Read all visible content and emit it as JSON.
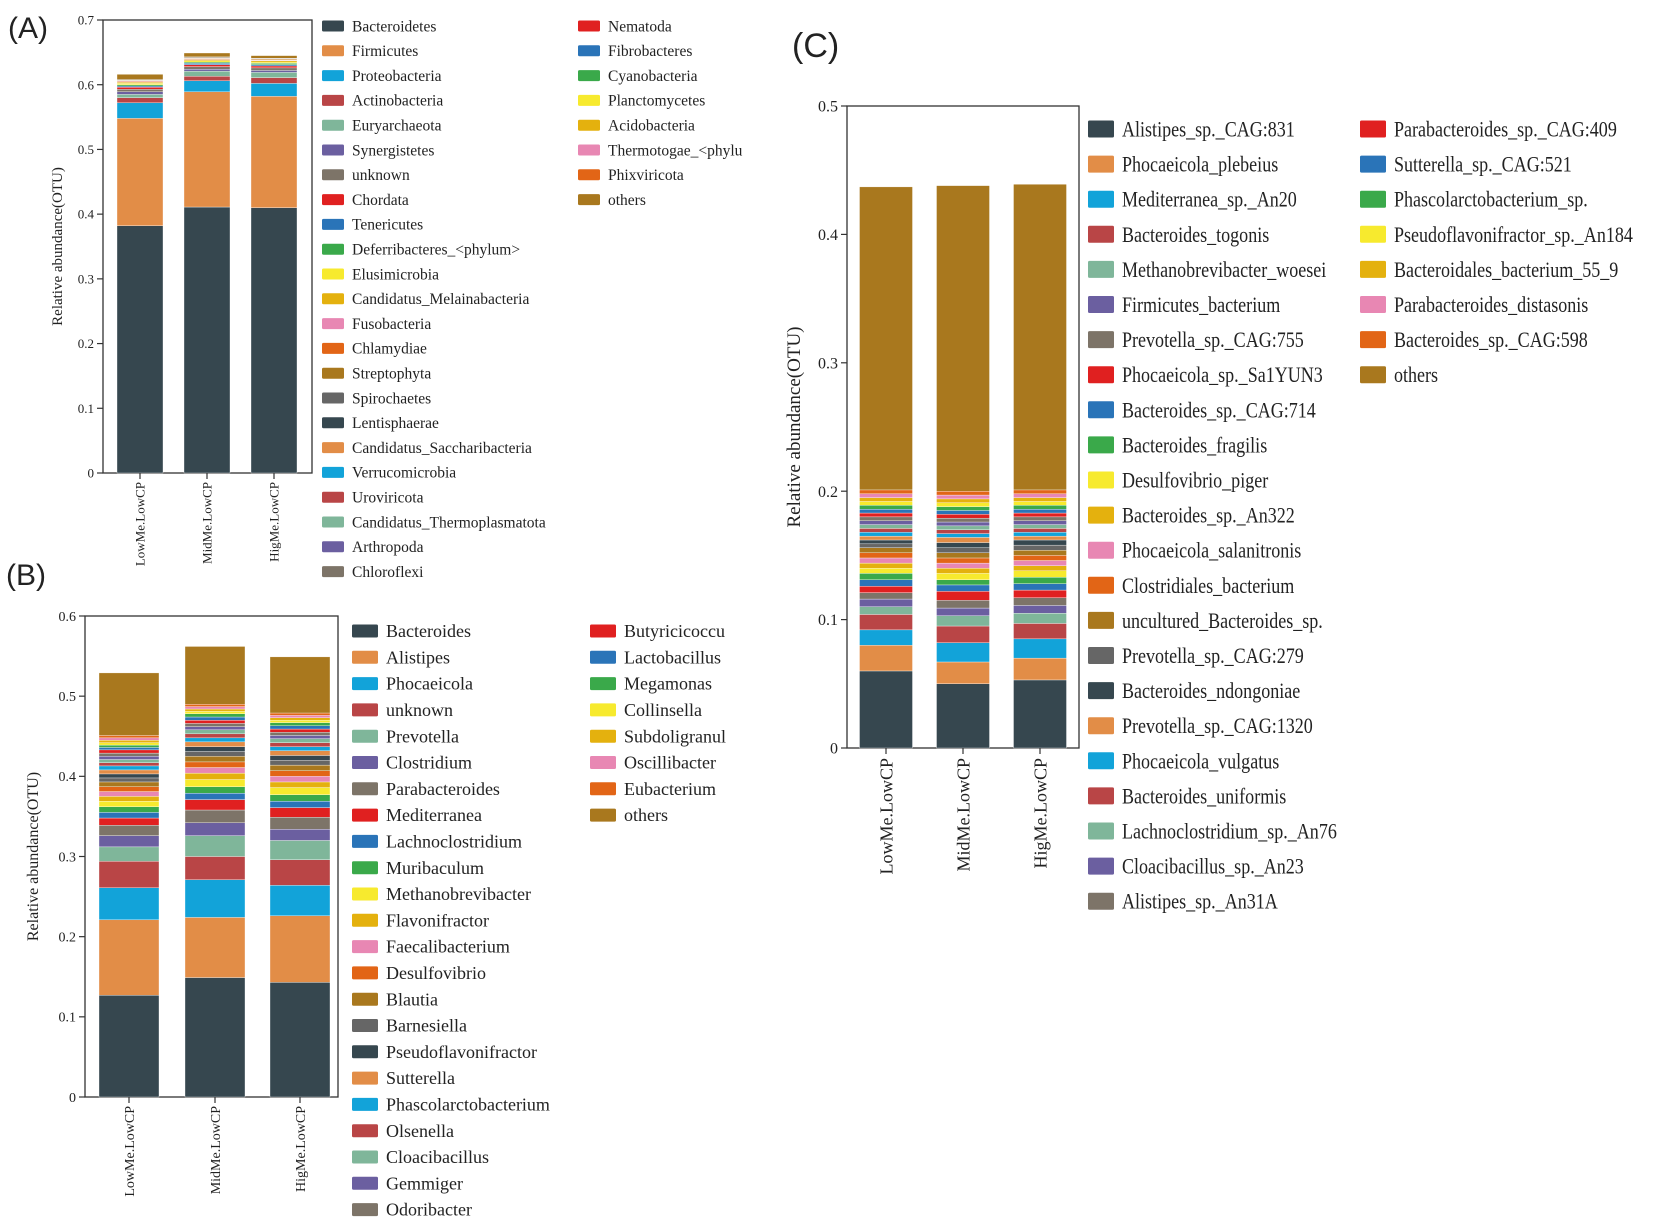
{
  "palette": {
    "Bacteroidetes": "#36474f",
    "Firmicutes": "#e28d47",
    "Proteobacteria": "#12a3d9",
    "Actinobacteria": "#b94546",
    "Euryarchaeota": "#7fb69a",
    "Synergistetes": "#6b5fa0",
    "unknown": "#7d7468",
    "Chordata": "#e02020",
    "Tenericutes": "#2a74b8",
    "Deferribacteres_<phylum>": "#3aa94a",
    "Elusimicrobia": "#f7ea2e",
    "Candidatus_Melainabacteria": "#e4b10e",
    "Fusobacteria": "#e887b3",
    "Chlamydiae": "#e26516",
    "Streptophyta": "#a9781e",
    "Spirochaetes": "#666666",
    "Lentisphaerae": "#36474f",
    "Candidatus_Saccharibacteria": "#e28d47",
    "Verrucomicrobia": "#12a3d9",
    "Uroviricota": "#b94546",
    "Candidatus_Thermoplasmatota": "#7fb69a",
    "Arthropoda": "#6b5fa0",
    "Chloroflexi": "#7d7468",
    "Nematoda": "#e02020",
    "Fibrobacteres": "#2a74b8",
    "Cyanobacteria": "#3aa94a",
    "Planctomycetes": "#f7ea2e",
    "Acidobacteria": "#e4b10e",
    "Thermotogae_<phylum>": "#e887b3",
    "Phixviricota": "#e26516",
    "others": "#a9781e"
  },
  "chart_data": [
    {
      "panel": "(A)",
      "type": "bar",
      "stacked": true,
      "ylabel": "Relative abundance(OTU)",
      "ylim": [
        0,
        0.7
      ],
      "yticks": [
        "0",
        "0.1",
        "0.2",
        "0.3",
        "0.4",
        "0.5",
        "0.6",
        "0.7"
      ],
      "categories": [
        "LowMe.LowCP",
        "MidMe.LowCP",
        "HigMe.LowCP"
      ],
      "legend_columns": [
        [
          "Bacteroidetes",
          "Firmicutes",
          "Proteobacteria",
          "Actinobacteria",
          "Euryarchaeota",
          "Synergistetes",
          "unknown",
          "Chordata",
          "Tenericutes",
          "Deferribacteres_<phylum>",
          "Elusimicrobia",
          "Candidatus_Melainabacteria",
          "Fusobacteria",
          "Chlamydiae",
          "Streptophyta",
          "Spirochaetes",
          "Lentisphaerae",
          "Candidatus_Saccharibacteria",
          "Verrucomicrobia",
          "Uroviricota",
          "Candidatus_Thermoplasmatota",
          "Arthropoda",
          "Chloroflexi"
        ],
        [
          "Nematoda",
          "Fibrobacteres",
          "Cyanobacteria",
          "Planctomycetes",
          "Acidobacteria",
          "Thermotogae_<phylu",
          "Phixviricota",
          "others"
        ]
      ],
      "legend_colors": [
        [
          "#36474f",
          "#e28d47",
          "#12a3d9",
          "#b94546",
          "#7fb69a",
          "#6b5fa0",
          "#7d7468",
          "#e02020",
          "#2a74b8",
          "#3aa94a",
          "#f7ea2e",
          "#e4b10e",
          "#e887b3",
          "#e26516",
          "#a9781e",
          "#666666",
          "#36474f",
          "#e28d47",
          "#12a3d9",
          "#b94546",
          "#7fb69a",
          "#6b5fa0",
          "#7d7468"
        ],
        [
          "#e02020",
          "#2a74b8",
          "#3aa94a",
          "#f7ea2e",
          "#e4b10e",
          "#e887b3",
          "#e26516",
          "#a9781e"
        ]
      ],
      "series": [
        {
          "name": "Bacteroidetes",
          "values": [
            0.382,
            0.411,
            0.41
          ]
        },
        {
          "name": "Firmicutes",
          "values": [
            0.166,
            0.178,
            0.172
          ]
        },
        {
          "name": "Proteobacteria",
          "values": [
            0.024,
            0.017,
            0.02
          ]
        },
        {
          "name": "Actinobacteria",
          "values": [
            0.008,
            0.007,
            0.009
          ]
        },
        {
          "name": "Euryarchaeota",
          "values": [
            0.005,
            0.008,
            0.008
          ]
        },
        {
          "name": "Synergistetes",
          "values": [
            0.004,
            0.003,
            0.003
          ]
        },
        {
          "name": "unknown",
          "values": [
            0.004,
            0.004,
            0.004
          ]
        },
        {
          "name": "Chordata",
          "values": [
            0.003,
            0.003,
            0.003
          ]
        },
        {
          "name": "Tenericutes",
          "values": [
            0.002,
            0.002,
            0.002
          ]
        },
        {
          "name": "Deferribacteres_<phylum>",
          "values": [
            0.002,
            0.002,
            0.002
          ]
        },
        {
          "name": "Elusimicrobia",
          "values": [
            0.002,
            0.002,
            0.002
          ]
        },
        {
          "name": "Candidatus_Melainabacteria",
          "values": [
            0.002,
            0.002,
            0.002
          ]
        },
        {
          "name": "Fusobacteria",
          "values": [
            0.001,
            0.001,
            0.001
          ]
        },
        {
          "name": "Chlamydiae",
          "values": [
            0.001,
            0.001,
            0.001
          ]
        },
        {
          "name": "Streptophyta",
          "values": [
            0.001,
            0.001,
            0.001
          ]
        },
        {
          "name": "Spirochaetes",
          "values": [
            0.001,
            0.001,
            0.001
          ]
        },
        {
          "name": "others",
          "values": [
            0.008,
            0.006,
            0.004
          ]
        }
      ]
    },
    {
      "panel": "(B)",
      "type": "bar",
      "stacked": true,
      "ylabel": "Relative abundance(OTU)",
      "ylim": [
        0,
        0.6
      ],
      "yticks": [
        "0",
        "0.1",
        "0.2",
        "0.3",
        "0.4",
        "0.5",
        "0.6"
      ],
      "categories": [
        "LowMe.LowCP",
        "MidMe.LowCP",
        "HigMe.LowCP"
      ],
      "legend_columns": [
        [
          "Bacteroides",
          "Alistipes",
          "Phocaeicola",
          "unknown",
          "Prevotella",
          "Clostridium",
          "Parabacteroides",
          "Mediterranea",
          "Lachnoclostridium",
          "Muribaculum",
          "Methanobrevibacter",
          "Flavonifractor",
          "Faecalibacterium",
          "Desulfovibrio",
          "Blautia",
          "Barnesiella",
          "Pseudoflavonifractor",
          "Sutterella",
          "Phascolarctobacterium",
          "Olsenella",
          "Cloacibacillus",
          "Gemmiger",
          "Odoribacter"
        ],
        [
          "Butyricicoccu",
          "Lactobacillus",
          "Megamonas",
          "Collinsella",
          "Subdoligranul",
          "Oscillibacter",
          "Eubacterium",
          "others"
        ]
      ],
      "legend_colors": [
        [
          "#36474f",
          "#e28d47",
          "#12a3d9",
          "#b94546",
          "#7fb69a",
          "#6b5fa0",
          "#7d7468",
          "#e02020",
          "#2a74b8",
          "#3aa94a",
          "#f7ea2e",
          "#e4b10e",
          "#e887b3",
          "#e26516",
          "#a9781e",
          "#666666",
          "#36474f",
          "#e28d47",
          "#12a3d9",
          "#b94546",
          "#7fb69a",
          "#6b5fa0",
          "#7d7468"
        ],
        [
          "#e02020",
          "#2a74b8",
          "#3aa94a",
          "#f7ea2e",
          "#e4b10e",
          "#e887b3",
          "#e26516",
          "#a9781e"
        ]
      ],
      "series": [
        {
          "name": "Bacteroides",
          "values": [
            0.127,
            0.149,
            0.143
          ]
        },
        {
          "name": "Alistipes",
          "values": [
            0.094,
            0.075,
            0.083
          ]
        },
        {
          "name": "Phocaeicola",
          "values": [
            0.04,
            0.047,
            0.038
          ]
        },
        {
          "name": "unknown",
          "values": [
            0.033,
            0.029,
            0.032
          ]
        },
        {
          "name": "Prevotella",
          "values": [
            0.018,
            0.026,
            0.024
          ]
        },
        {
          "name": "Clostridium",
          "values": [
            0.014,
            0.016,
            0.014
          ]
        },
        {
          "name": "Parabacteroides",
          "values": [
            0.013,
            0.016,
            0.015
          ]
        },
        {
          "name": "Mediterranea",
          "values": [
            0.009,
            0.013,
            0.012
          ]
        },
        {
          "name": "Lachnoclostridium",
          "values": [
            0.007,
            0.008,
            0.008
          ]
        },
        {
          "name": "Muribaculum",
          "values": [
            0.007,
            0.008,
            0.008
          ]
        },
        {
          "name": "Methanobrevibacter",
          "values": [
            0.007,
            0.009,
            0.009
          ]
        },
        {
          "name": "Flavonifractor",
          "values": [
            0.006,
            0.008,
            0.007
          ]
        },
        {
          "name": "Faecalibacterium",
          "values": [
            0.006,
            0.007,
            0.007
          ]
        },
        {
          "name": "Desulfovibrio",
          "values": [
            0.006,
            0.007,
            0.007
          ]
        },
        {
          "name": "Blautia",
          "values": [
            0.006,
            0.007,
            0.007
          ]
        },
        {
          "name": "Barnesiella",
          "values": [
            0.005,
            0.006,
            0.006
          ]
        },
        {
          "name": "Pseudoflavonifractor",
          "values": [
            0.005,
            0.006,
            0.006
          ]
        },
        {
          "name": "Sutterella",
          "values": [
            0.005,
            0.006,
            0.006
          ]
        },
        {
          "name": "Phascolarctobacterium",
          "values": [
            0.005,
            0.005,
            0.005
          ]
        },
        {
          "name": "Olsenella",
          "values": [
            0.004,
            0.005,
            0.005
          ]
        },
        {
          "name": "Cloacibacillus",
          "values": [
            0.004,
            0.005,
            0.005
          ]
        },
        {
          "name": "Gemmiger",
          "values": [
            0.004,
            0.004,
            0.004
          ]
        },
        {
          "name": "Odoribacter",
          "values": [
            0.004,
            0.004,
            0.004
          ]
        },
        {
          "name": "Butyricicoccu",
          "values": [
            0.004,
            0.004,
            0.004
          ]
        },
        {
          "name": "Lactobacillus",
          "values": [
            0.003,
            0.004,
            0.004
          ]
        },
        {
          "name": "Megamonas",
          "values": [
            0.003,
            0.004,
            0.004
          ]
        },
        {
          "name": "Collinsella",
          "values": [
            0.003,
            0.003,
            0.003
          ]
        },
        {
          "name": "Subdoligranul",
          "values": [
            0.003,
            0.003,
            0.003
          ]
        },
        {
          "name": "Oscillibacter",
          "values": [
            0.003,
            0.003,
            0.003
          ]
        },
        {
          "name": "Eubacterium",
          "values": [
            0.003,
            0.003,
            0.003
          ]
        },
        {
          "name": "others",
          "values": [
            0.078,
            0.072,
            0.07
          ]
        }
      ]
    },
    {
      "panel": "(C)",
      "type": "bar",
      "stacked": true,
      "ylabel": "Relative abundance(OTU)",
      "ylim": [
        0,
        0.5
      ],
      "yticks": [
        "0",
        "0.1",
        "0.2",
        "0.3",
        "0.4",
        "0.5"
      ],
      "categories": [
        "LowMe.LowCP",
        "MidMe.LowCP",
        "HigMe.LowCP"
      ],
      "legend_columns": [
        [
          "Alistipes_sp._CAG:831",
          "Phocaeicola_plebeius",
          "Mediterranea_sp._An20",
          "Bacteroides_togonis",
          "Methanobrevibacter_woesei",
          "Firmicutes_bacterium",
          "Prevotella_sp._CAG:755",
          "Phocaeicola_sp._Sa1YUN3",
          "Bacteroides_sp._CAG:714",
          "Bacteroides_fragilis",
          "Desulfovibrio_piger",
          "Bacteroides_sp._An322",
          "Phocaeicola_salanitronis",
          "Clostridiales_bacterium",
          "uncultured_Bacteroides_sp.",
          "Prevotella_sp._CAG:279",
          "Bacteroides_ndongoniae",
          "Prevotella_sp._CAG:1320",
          "Phocaeicola_vulgatus",
          "Bacteroides_uniformis",
          "Lachnoclostridium_sp._An76",
          "Cloacibacillus_sp._An23",
          "Alistipes_sp._An31A"
        ],
        [
          "Parabacteroides_sp._CAG:409",
          "Sutterella_sp._CAG:521",
          "Phascolarctobacterium_sp.",
          "Pseudoflavonifractor_sp._An184",
          "Bacteroidales_bacterium_55_9",
          "Parabacteroides_distasonis",
          "Bacteroides_sp._CAG:598",
          "others"
        ]
      ],
      "legend_colors": [
        [
          "#36474f",
          "#e28d47",
          "#12a3d9",
          "#b94546",
          "#7fb69a",
          "#6b5fa0",
          "#7d7468",
          "#e02020",
          "#2a74b8",
          "#3aa94a",
          "#f7ea2e",
          "#e4b10e",
          "#e887b3",
          "#e26516",
          "#a9781e",
          "#666666",
          "#36474f",
          "#e28d47",
          "#12a3d9",
          "#b94546",
          "#7fb69a",
          "#6b5fa0",
          "#7d7468"
        ],
        [
          "#e02020",
          "#2a74b8",
          "#3aa94a",
          "#f7ea2e",
          "#e4b10e",
          "#e887b3",
          "#e26516",
          "#a9781e"
        ]
      ],
      "series": [
        {
          "name": "Alistipes_sp._CAG:831",
          "values": [
            0.06,
            0.05,
            0.053
          ]
        },
        {
          "name": "Phocaeicola_plebeius",
          "values": [
            0.02,
            0.017,
            0.017
          ]
        },
        {
          "name": "Mediterranea_sp._An20",
          "values": [
            0.012,
            0.015,
            0.015
          ]
        },
        {
          "name": "Bacteroides_togonis",
          "values": [
            0.012,
            0.013,
            0.012
          ]
        },
        {
          "name": "Methanobrevibacter_woesei",
          "values": [
            0.006,
            0.008,
            0.008
          ]
        },
        {
          "name": "Firmicutes_bacterium",
          "values": [
            0.006,
            0.006,
            0.006
          ]
        },
        {
          "name": "Prevotella_sp._CAG:755",
          "values": [
            0.005,
            0.006,
            0.006
          ]
        },
        {
          "name": "Phocaeicola_sp._Sa1YUN3",
          "values": [
            0.005,
            0.007,
            0.006
          ]
        },
        {
          "name": "Bacteroides_sp._CAG:714",
          "values": [
            0.005,
            0.005,
            0.005
          ]
        },
        {
          "name": "Bacteroides_fragilis",
          "values": [
            0.005,
            0.004,
            0.005
          ]
        },
        {
          "name": "Desulfovibrio_piger",
          "values": [
            0.004,
            0.005,
            0.005
          ]
        },
        {
          "name": "Bacteroides_sp._An322",
          "values": [
            0.004,
            0.004,
            0.004
          ]
        },
        {
          "name": "Phocaeicola_salanitronis",
          "values": [
            0.004,
            0.004,
            0.004
          ]
        },
        {
          "name": "Clostridiales_bacterium",
          "values": [
            0.004,
            0.004,
            0.004
          ]
        },
        {
          "name": "uncultured_Bacteroides_sp.",
          "values": [
            0.004,
            0.004,
            0.004
          ]
        },
        {
          "name": "Prevotella_sp._CAG:279",
          "values": [
            0.003,
            0.004,
            0.004
          ]
        },
        {
          "name": "Bacteroides_ndongoniae",
          "values": [
            0.003,
            0.004,
            0.004
          ]
        },
        {
          "name": "Prevotella_sp._CAG:1320",
          "values": [
            0.003,
            0.004,
            0.003
          ]
        },
        {
          "name": "Phocaeicola_vulgatus",
          "values": [
            0.003,
            0.003,
            0.003
          ]
        },
        {
          "name": "Bacteroides_uniformis",
          "values": [
            0.003,
            0.003,
            0.003
          ]
        },
        {
          "name": "Lachnoclostridium_sp._An76",
          "values": [
            0.003,
            0.003,
            0.003
          ]
        },
        {
          "name": "Cloacibacillus_sp._An23",
          "values": [
            0.003,
            0.003,
            0.003
          ]
        },
        {
          "name": "Alistipes_sp._An31A",
          "values": [
            0.003,
            0.003,
            0.003
          ]
        },
        {
          "name": "Parabacteroides_sp._CAG:409",
          "values": [
            0.003,
            0.003,
            0.003
          ]
        },
        {
          "name": "Sutterella_sp._CAG:521",
          "values": [
            0.003,
            0.003,
            0.003
          ]
        },
        {
          "name": "Phascolarctobacterium_sp.",
          "values": [
            0.003,
            0.003,
            0.003
          ]
        },
        {
          "name": "Pseudoflavonifractor_sp._An184",
          "values": [
            0.003,
            0.003,
            0.003
          ]
        },
        {
          "name": "Bacteroidales_bacterium_55_9",
          "values": [
            0.003,
            0.003,
            0.003
          ]
        },
        {
          "name": "Parabacteroides_distasonis",
          "values": [
            0.003,
            0.003,
            0.003
          ]
        },
        {
          "name": "Bacteroides_sp._CAG:598",
          "values": [
            0.003,
            0.003,
            0.003
          ]
        },
        {
          "name": "others",
          "values": [
            0.236,
            0.238,
            0.238
          ]
        }
      ]
    }
  ]
}
